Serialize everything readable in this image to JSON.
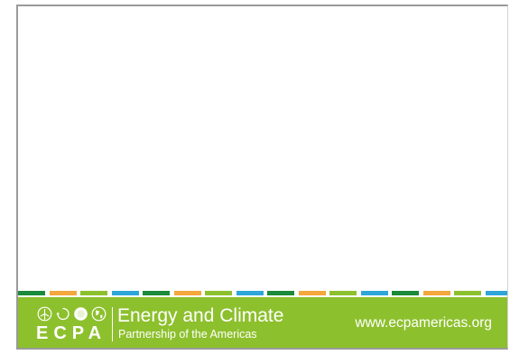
{
  "slide": {
    "stripe_colors": [
      "#1b8a3a",
      "#f3a73c",
      "#8dc02d",
      "#2fa6d9",
      "#1b8a3a",
      "#f3a73c",
      "#8dc02d",
      "#2fa6d9",
      "#1b8a3a",
      "#f3a73c",
      "#8dc02d",
      "#2fa6d9",
      "#1b8a3a",
      "#f3a73c",
      "#8dc02d",
      "#2fa6d9"
    ],
    "footer_color": "#8dc02d"
  },
  "footer": {
    "logo_icons": [
      "wind-turbine-icon",
      "leaf-cycle-icon",
      "sun-icon",
      "globe-icon"
    ],
    "logo_letters": "ECPA",
    "title": "Energy and Climate",
    "subtitle": "Partnership of the Americas",
    "website": "www.ecpamericas.org"
  }
}
